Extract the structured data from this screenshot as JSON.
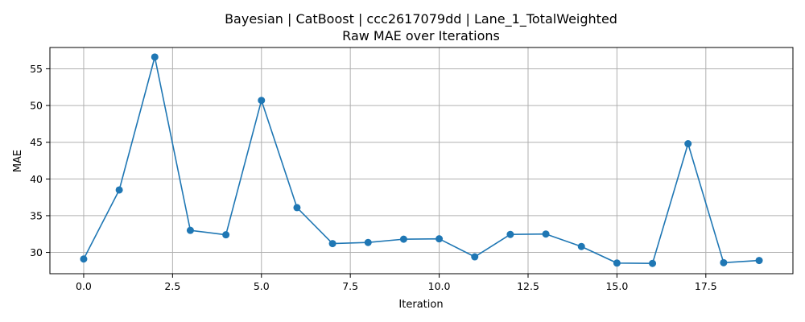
{
  "chart_data": {
    "type": "line",
    "title": "Bayesian | CatBoost | ccc2617079dd | Lane_1_TotalWeighted",
    "subtitle": "Raw MAE over Iterations",
    "xlabel": "Iteration",
    "ylabel": "MAE",
    "xlim": [
      -0.95,
      19.95
    ],
    "ylim": [
      27.1,
      57.9
    ],
    "xticks": [
      0.0,
      2.5,
      5.0,
      7.5,
      10.0,
      12.5,
      15.0,
      17.5
    ],
    "xtick_labels": [
      "0.0",
      "2.5",
      "5.0",
      "7.5",
      "10.0",
      "12.5",
      "15.0",
      "17.5"
    ],
    "yticks": [
      30,
      35,
      40,
      45,
      50,
      55
    ],
    "ytick_labels": [
      "30",
      "35",
      "40",
      "45",
      "50",
      "55"
    ],
    "grid": true,
    "color": "#1f77b4",
    "series": [
      {
        "x": [
          0,
          1,
          2,
          3,
          4,
          5,
          6,
          7,
          8,
          9,
          10,
          11,
          12,
          13,
          14,
          15,
          16,
          17,
          18,
          19
        ],
        "y": [
          29.1,
          38.5,
          56.6,
          33.0,
          32.4,
          50.7,
          36.1,
          31.2,
          31.35,
          31.8,
          31.85,
          29.4,
          32.45,
          32.5,
          30.8,
          28.55,
          28.5,
          44.8,
          28.6,
          28.9
        ]
      }
    ]
  }
}
